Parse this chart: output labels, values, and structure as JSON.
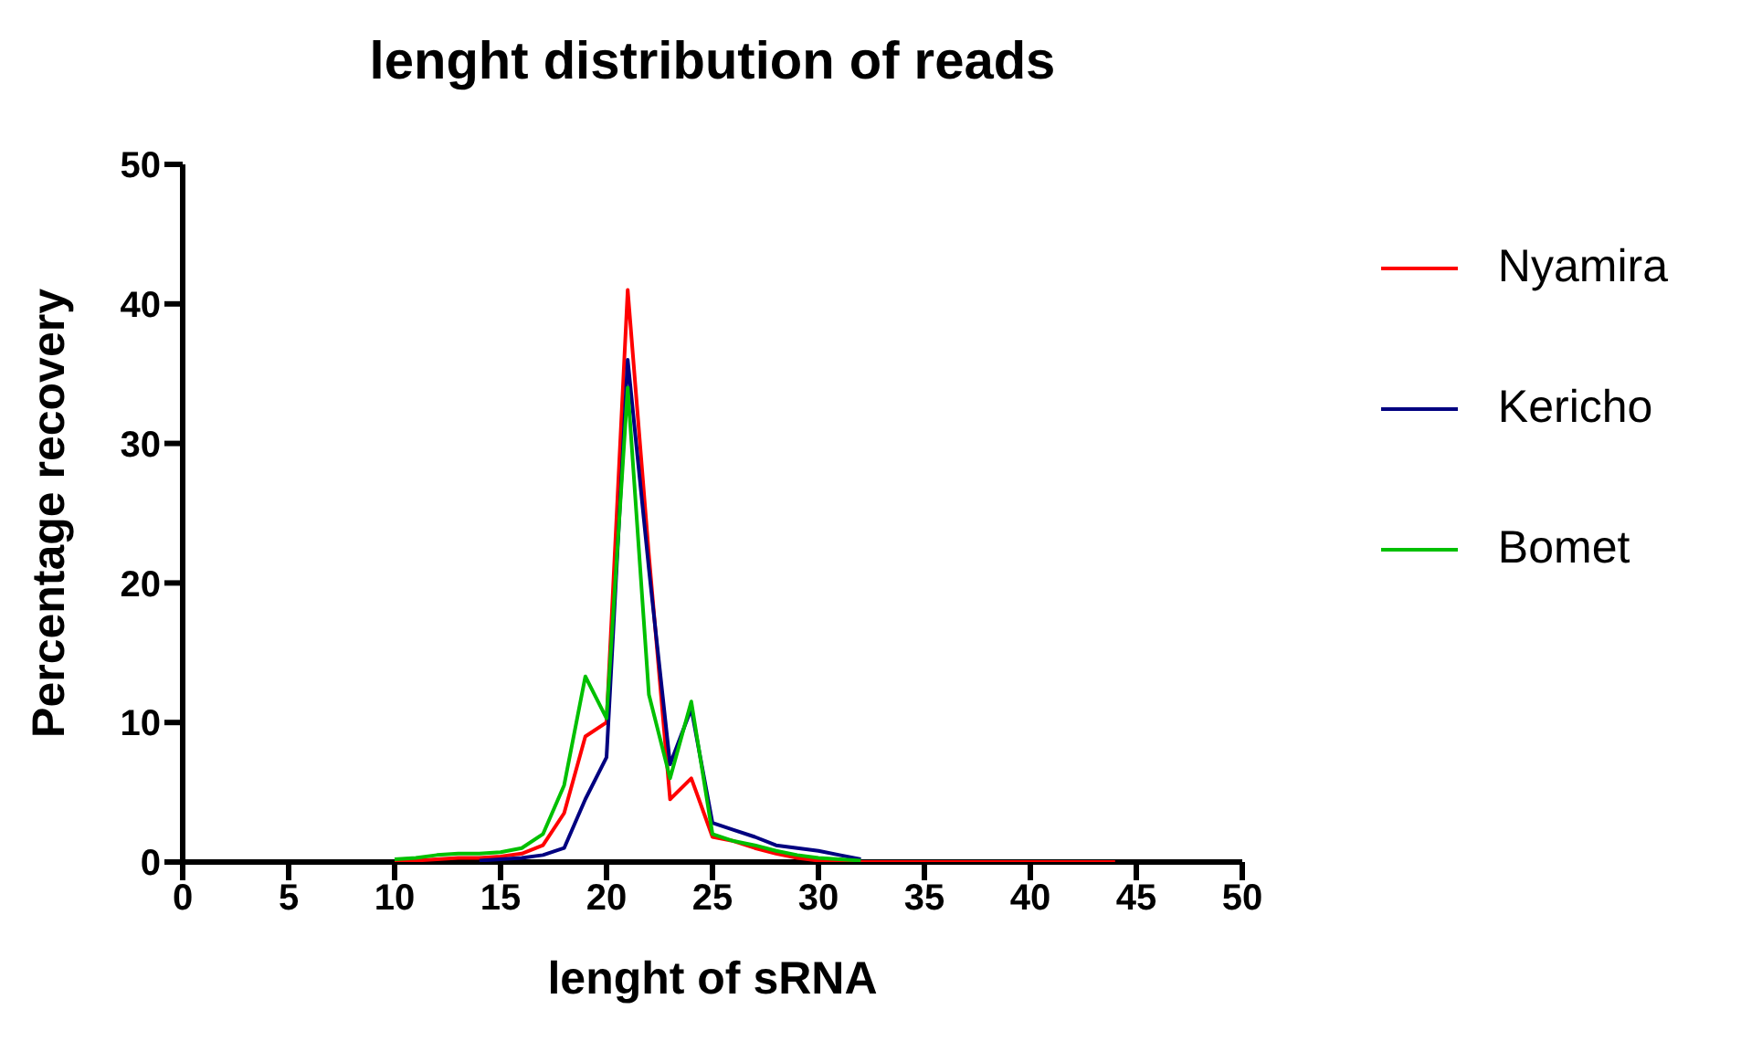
{
  "chart_data": {
    "type": "line",
    "title": "lenght distribution of reads",
    "xlabel": "lenght of sRNA",
    "ylabel": "Percentage recovery",
    "x": [
      10,
      11,
      12,
      13,
      14,
      15,
      16,
      17,
      18,
      19,
      20,
      21,
      22,
      23,
      24,
      25,
      26,
      27,
      28,
      29,
      30,
      31,
      32,
      33,
      34,
      35,
      36,
      37,
      38,
      39,
      40,
      41,
      42,
      43,
      44
    ],
    "series": [
      {
        "name": "Nyamira",
        "color": "#ff0000",
        "values": [
          0.1,
          0.1,
          0.2,
          0.3,
          0.3,
          0.4,
          0.6,
          1.2,
          3.5,
          9,
          10,
          41,
          22,
          4.5,
          6,
          1.8,
          1.5,
          1,
          0.6,
          0.3,
          0.1,
          0.1,
          0,
          0,
          0,
          0,
          0,
          0,
          0,
          0,
          0,
          0,
          0,
          0,
          0
        ]
      },
      {
        "name": "Kericho",
        "color": "#000080",
        "values": [
          null,
          null,
          null,
          null,
          0.1,
          0.2,
          0.3,
          0.5,
          1,
          4.5,
          7.5,
          36,
          21,
          7,
          11,
          2.8,
          2.3,
          1.8,
          1.2,
          1,
          0.8,
          0.5,
          0.2,
          null,
          null,
          null,
          null,
          null,
          null,
          null,
          null,
          null,
          null,
          null,
          null
        ]
      },
      {
        "name": "Bomet",
        "color": "#00c000",
        "values": [
          0.2,
          0.3,
          0.5,
          0.6,
          0.6,
          0.7,
          1,
          2,
          5.5,
          13.3,
          10.3,
          34,
          12,
          6,
          11.5,
          2,
          1.5,
          1.2,
          0.8,
          0.5,
          0.3,
          0.2,
          0.1,
          null,
          null,
          null,
          null,
          null,
          null,
          null,
          null,
          null,
          null,
          null,
          null
        ]
      }
    ],
    "xlim": [
      0,
      50
    ],
    "xticks": [
      0,
      5,
      10,
      15,
      20,
      25,
      30,
      35,
      40,
      45,
      50
    ],
    "ylim": [
      0,
      50
    ],
    "yticks": [
      0,
      10,
      20,
      30,
      40,
      50
    ],
    "grid": false,
    "legend": "top right",
    "marker": "none",
    "line_style": "solid"
  }
}
